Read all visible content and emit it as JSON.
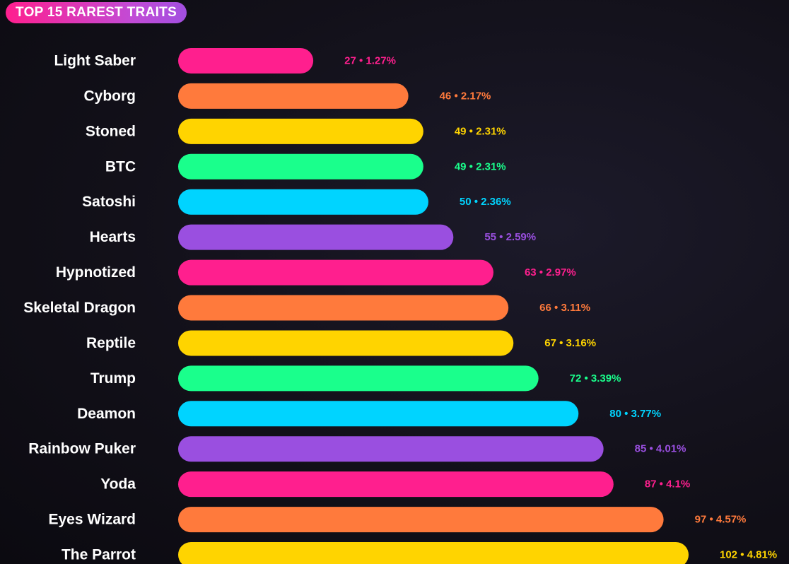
{
  "title": "TOP 15 RAREST TRAITS",
  "chart_data": {
    "type": "bar",
    "orientation": "horizontal",
    "title": "TOP 15 RAREST TRAITS",
    "xlim": [
      0,
      102
    ],
    "categories": [
      "Light Saber",
      "Cyborg",
      "Stoned",
      "BTC",
      "Satoshi",
      "Hearts",
      "Hypnotized",
      "Skeletal Dragon",
      "Reptile",
      "Trump",
      "Deamon",
      "Rainbow Puker",
      "Yoda",
      "Eyes Wizard",
      "The Parrot"
    ],
    "values": [
      27,
      46,
      49,
      49,
      50,
      55,
      63,
      66,
      67,
      72,
      80,
      85,
      87,
      97,
      102
    ],
    "percents": [
      "1.27%",
      "2.17%",
      "2.31%",
      "2.31%",
      "2.36%",
      "2.59%",
      "2.97%",
      "3.11%",
      "3.16%",
      "3.39%",
      "3.77%",
      "4.01%",
      "4.1%",
      "4.57%",
      "4.81%"
    ],
    "value_labels": [
      "27 • 1.27%",
      "46 • 2.17%",
      "49 • 2.31%",
      "49 • 2.31%",
      "50 • 2.36%",
      "55 • 2.59%",
      "63 • 2.97%",
      "66 • 3.11%",
      "67 • 3.16%",
      "72 • 3.39%",
      "80 • 3.77%",
      "85 • 4.01%",
      "87 • 4.1%",
      "97 • 4.57%",
      "102 • 4.81%"
    ],
    "colors": [
      "#ff1f8e",
      "#ff7a3c",
      "#ffd400",
      "#1aff8c",
      "#00d4ff",
      "#9a4fe0",
      "#ff1f8e",
      "#ff7a3c",
      "#ffd400",
      "#1aff8c",
      "#00d4ff",
      "#9a4fe0",
      "#ff1f8e",
      "#ff7a3c",
      "#ffd400"
    ]
  }
}
